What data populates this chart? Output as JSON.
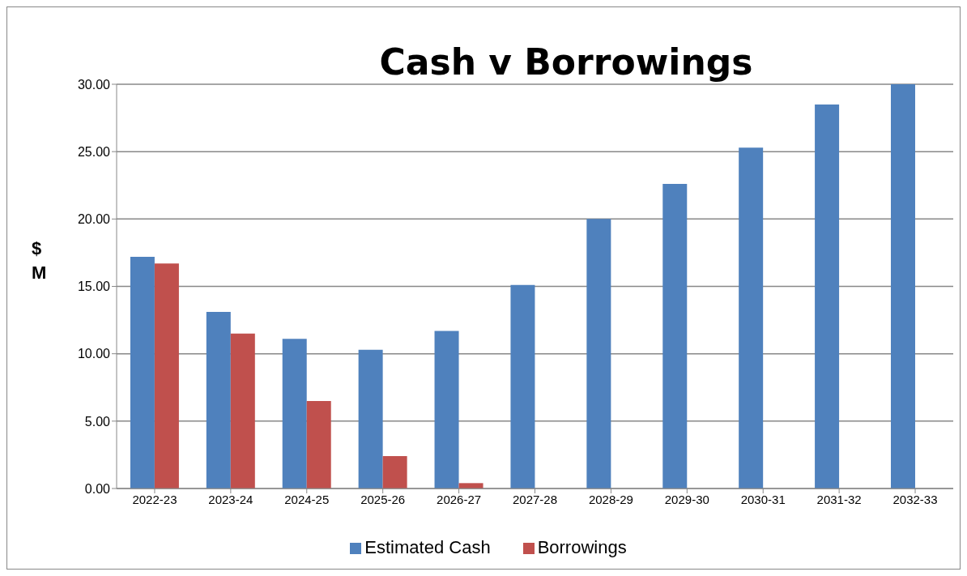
{
  "chart_data": {
    "type": "bar",
    "title": "Cash v Borrowings",
    "ylabel": "$ M",
    "categories": [
      "2022-23",
      "2023-24",
      "2024-25",
      "2025-26",
      "2026-27",
      "2027-28",
      "2028-29",
      "2029-30",
      "2030-31",
      "2031-32",
      "2032-33"
    ],
    "series": [
      {
        "name": "Estimated Cash",
        "color": "#4f81bd",
        "values": [
          17.2,
          13.1,
          11.1,
          10.3,
          11.7,
          15.1,
          20.0,
          22.6,
          25.3,
          28.5,
          30.0
        ]
      },
      {
        "name": "Borrowings",
        "color": "#c0504d",
        "values": [
          16.7,
          11.5,
          6.5,
          2.4,
          0.4,
          null,
          null,
          null,
          null,
          null,
          null
        ]
      }
    ],
    "ylim": [
      0,
      30
    ],
    "yticks": [
      {
        "value": 0,
        "label": "0.00"
      },
      {
        "value": 5,
        "label": "5.00"
      },
      {
        "value": 10,
        "label": "10.00"
      },
      {
        "value": 15,
        "label": "15.00"
      },
      {
        "value": 20,
        "label": "20.00"
      },
      {
        "value": 25,
        "label": "25.00"
      },
      {
        "value": 30,
        "label": "30.00"
      }
    ],
    "grid": "y",
    "legend": "bottom"
  }
}
